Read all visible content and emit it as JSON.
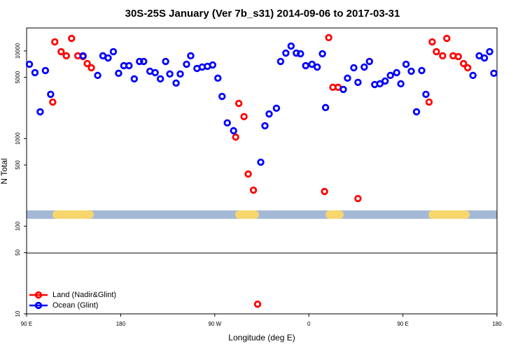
{
  "chart_data": {
    "type": "scatter",
    "title": "30S-25S January (Ver 7b_s31)   2014-09-06 to 2017-03-31",
    "x_label": "Longitude (deg E)",
    "y_label": "N Total",
    "log_y": true,
    "legend": "bottom-left",
    "xlim": [
      90,
      540
    ],
    "ylim": [
      10,
      18300
    ],
    "xticks": [
      {
        "value": 90,
        "label": "90 E"
      },
      180,
      {
        "value": 270,
        "label": "90 W"
      },
      {
        "value": 360,
        "label": "0"
      },
      {
        "value": 450,
        "label": "90 E"
      },
      {
        "value": 540,
        "label": "180"
      }
    ],
    "yticks": [
      10,
      50,
      100,
      500,
      1000,
      5000,
      10000
    ],
    "series": [
      {
        "name": "Land (Nadir&Glint)",
        "color": "#ff0000",
        "x": [
          115,
          117,
          123,
          128,
          133,
          139,
          144,
          148,
          152,
          290,
          293,
          298,
          302,
          307,
          311,
          375,
          379,
          383,
          388,
          407,
          475,
          478,
          482,
          488,
          492,
          498,
          503,
          508,
          512
        ],
        "values": [
          2610,
          12700,
          9820,
          8800,
          13900,
          8800,
          8630,
          7180,
          6430,
          1040,
          2520,
          1780,
          394,
          258,
          12.9,
          249,
          14200,
          3850,
          3850,
          207,
          2610,
          12700,
          9820,
          8800,
          13900,
          8800,
          8630,
          7180,
          6430
        ]
      },
      {
        "name": "Ocean (Glint)",
        "color": "#0000ff",
        "x": [
          92.7,
          98,
          103,
          108,
          113,
          144,
          158,
          163,
          168,
          173,
          178,
          183,
          188,
          193,
          198,
          202,
          208,
          213,
          218,
          223,
          227,
          233,
          237,
          243,
          247,
          253,
          258,
          263,
          268,
          273,
          277,
          282,
          288,
          314,
          318,
          322,
          329,
          333,
          338,
          343,
          348,
          352,
          357,
          363,
          368,
          373,
          376,
          393,
          397,
          403,
          407,
          413,
          418,
          423,
          428,
          433,
          438,
          444,
          448,
          453,
          458,
          463,
          468,
          472,
          517,
          523,
          528,
          533,
          537
        ],
        "values": [
          7050,
          5660,
          2020,
          5980,
          3200,
          8800,
          5260,
          8800,
          8320,
          9820,
          5560,
          6790,
          6790,
          4800,
          7590,
          7590,
          5870,
          5660,
          4800,
          7590,
          5460,
          4300,
          5460,
          7050,
          8800,
          6310,
          6550,
          6670,
          6920,
          4890,
          3030,
          1510,
          1230,
          538,
          1400,
          1910,
          2220,
          7590,
          9460,
          11370,
          9460,
          9290,
          6790,
          7050,
          6550,
          9290,
          2260,
          3640,
          4890,
          6430,
          4380,
          6550,
          7590,
          4140,
          4220,
          4540,
          5260,
          5660,
          4220,
          7050,
          5870,
          2020,
          5980,
          3200,
          5260,
          8800,
          8320,
          9820,
          5560
        ]
      }
    ]
  }
}
